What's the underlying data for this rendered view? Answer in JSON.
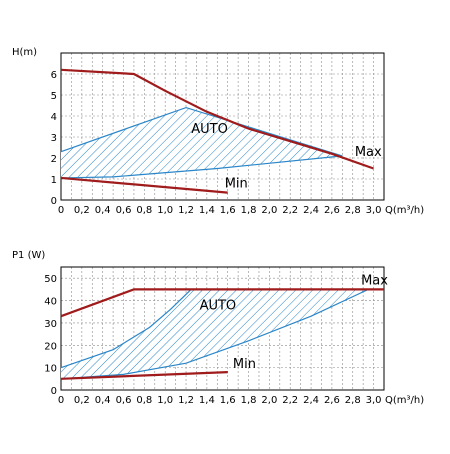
{
  "chart_data": [
    {
      "type": "line",
      "ylabel": "H(m)",
      "xlabel": "Q(m³/h)",
      "xlim": [
        0,
        3.0
      ],
      "ylim": [
        0,
        7
      ],
      "x_ticks": [
        "0",
        "0,2",
        "0,4",
        "0,6",
        "0,8",
        "1,0",
        "1,2",
        "1,4",
        "1,6",
        "1,8",
        "2,0",
        "2,2",
        "2,4",
        "2,6",
        "2,8",
        "3,0"
      ],
      "y_ticks": [
        "0",
        "1",
        "2",
        "3",
        "4",
        "5",
        "6"
      ],
      "grid": true,
      "colors": {
        "max_min": "#a01b1b",
        "auto": "#2a86c8",
        "grid": "#8c8c8c"
      },
      "series": [
        {
          "name": "Max",
          "points": [
            [
              0,
              6.2
            ],
            [
              0.7,
              6.0
            ],
            [
              1.0,
              5.2
            ],
            [
              1.4,
              4.2
            ],
            [
              1.8,
              3.4
            ],
            [
              2.2,
              2.8
            ],
            [
              2.6,
              2.2
            ],
            [
              3.0,
              1.5
            ]
          ]
        },
        {
          "name": "Min",
          "points": [
            [
              0,
              1.05
            ],
            [
              1.6,
              0.35
            ]
          ]
        }
      ],
      "auto_region": {
        "label": "AUTO",
        "upper": [
          [
            0,
            2.3
          ],
          [
            1.2,
            4.4
          ],
          [
            2.7,
            2.1
          ]
        ],
        "lower": [
          [
            0,
            1.05
          ],
          [
            0.5,
            1.1
          ],
          [
            1.5,
            1.5
          ],
          [
            2.7,
            2.1
          ]
        ]
      }
    },
    {
      "type": "line",
      "ylabel": "P1 (W)",
      "xlabel": "Q(m³/h)",
      "xlim": [
        0,
        3.1
      ],
      "ylim": [
        0,
        55
      ],
      "x_ticks": [
        "0",
        "0,2",
        "0,4",
        "0,6",
        "0,8",
        "1,0",
        "1,2",
        "1,4",
        "1,6",
        "1,8",
        "2,0",
        "2,2",
        "2,4",
        "2,6",
        "2,8",
        "3,0"
      ],
      "y_ticks": [
        "0",
        "10",
        "20",
        "30",
        "40",
        "50"
      ],
      "grid": true,
      "colors": {
        "max_min": "#a01b1b",
        "auto": "#2a86c8",
        "grid": "#8c8c8c"
      },
      "series": [
        {
          "name": "Max",
          "points": [
            [
              0,
              33
            ],
            [
              0.7,
              45
            ],
            [
              3.1,
              45
            ]
          ]
        },
        {
          "name": "Min",
          "points": [
            [
              0,
              5
            ],
            [
              1.6,
              8
            ]
          ]
        }
      ],
      "auto_region": {
        "label": "AUTO",
        "upper": [
          [
            0,
            10
          ],
          [
            0.5,
            18
          ],
          [
            0.85,
            28
          ],
          [
            1.05,
            36
          ],
          [
            1.25,
            45
          ]
        ],
        "lower": [
          [
            0,
            5
          ],
          [
            0.6,
            7
          ],
          [
            1.2,
            12
          ],
          [
            1.8,
            22
          ],
          [
            2.4,
            33
          ],
          [
            2.95,
            45
          ]
        ]
      }
    }
  ]
}
